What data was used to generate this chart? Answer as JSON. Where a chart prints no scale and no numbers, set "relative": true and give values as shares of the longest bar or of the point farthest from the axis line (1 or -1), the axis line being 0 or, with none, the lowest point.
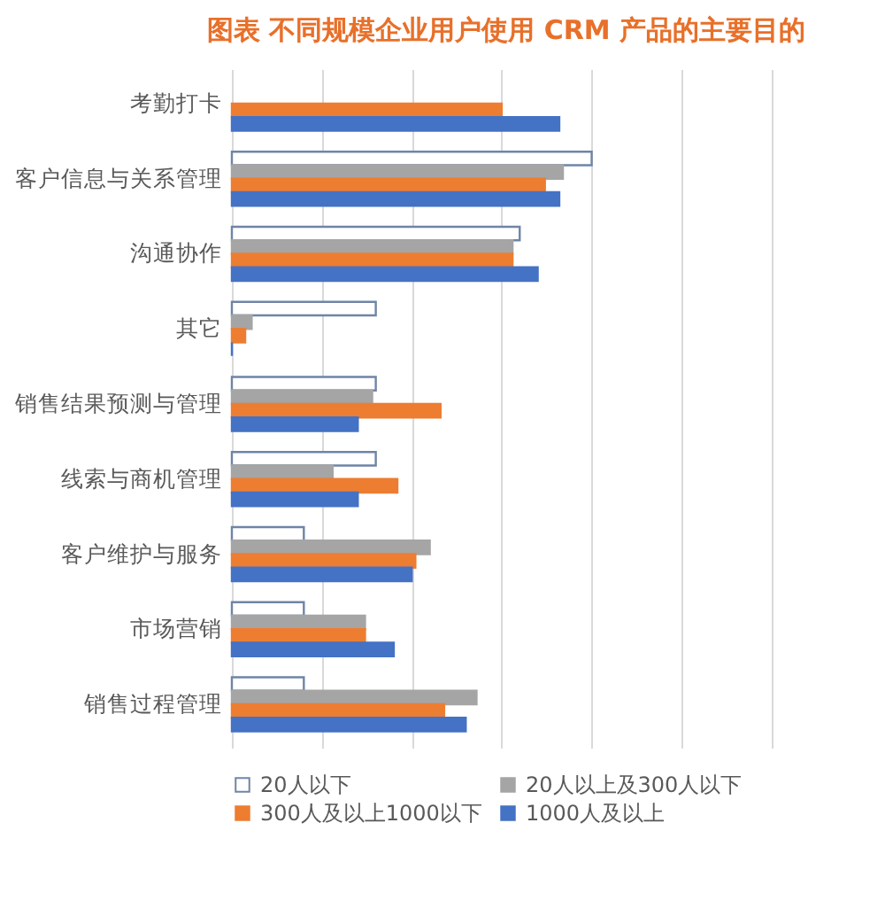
{
  "chart_data": {
    "type": "bar",
    "orientation": "horizontal",
    "relative": true,
    "title": "图表   不同规模企业用户使用 CRM 产品的主要目的",
    "categories": [
      "考勤打卡",
      "客户信息与关系管理",
      "沟通协作",
      "其它",
      "销售结果预测与管理",
      "线索与商机管理",
      "客户维护与服务",
      "市场营销",
      "销售过程管理"
    ],
    "series": [
      {
        "name": "20人以下",
        "color": "#ffffff",
        "values": [
          null,
          1.0,
          0.8,
          0.4,
          0.4,
          0.4,
          0.2,
          0.2,
          0.2
        ]
      },
      {
        "name": "20人以上及300人以下",
        "color": "#a5a5a5",
        "values": [
          null,
          0.92,
          0.78,
          0.055,
          0.39,
          0.28,
          0.55,
          0.37,
          0.68
        ]
      },
      {
        "name": "300人及以上1000以下",
        "color": "#ed7d31",
        "values": [
          0.75,
          0.87,
          0.78,
          0.037,
          0.58,
          0.46,
          0.51,
          0.37,
          0.59
        ]
      },
      {
        "name": "1000人及以上",
        "color": "#4472c4",
        "values": [
          0.91,
          0.91,
          0.85,
          0,
          0.35,
          0.35,
          0.5,
          0.45,
          0.65
        ]
      }
    ],
    "grid": "x",
    "legend": "bottom"
  }
}
